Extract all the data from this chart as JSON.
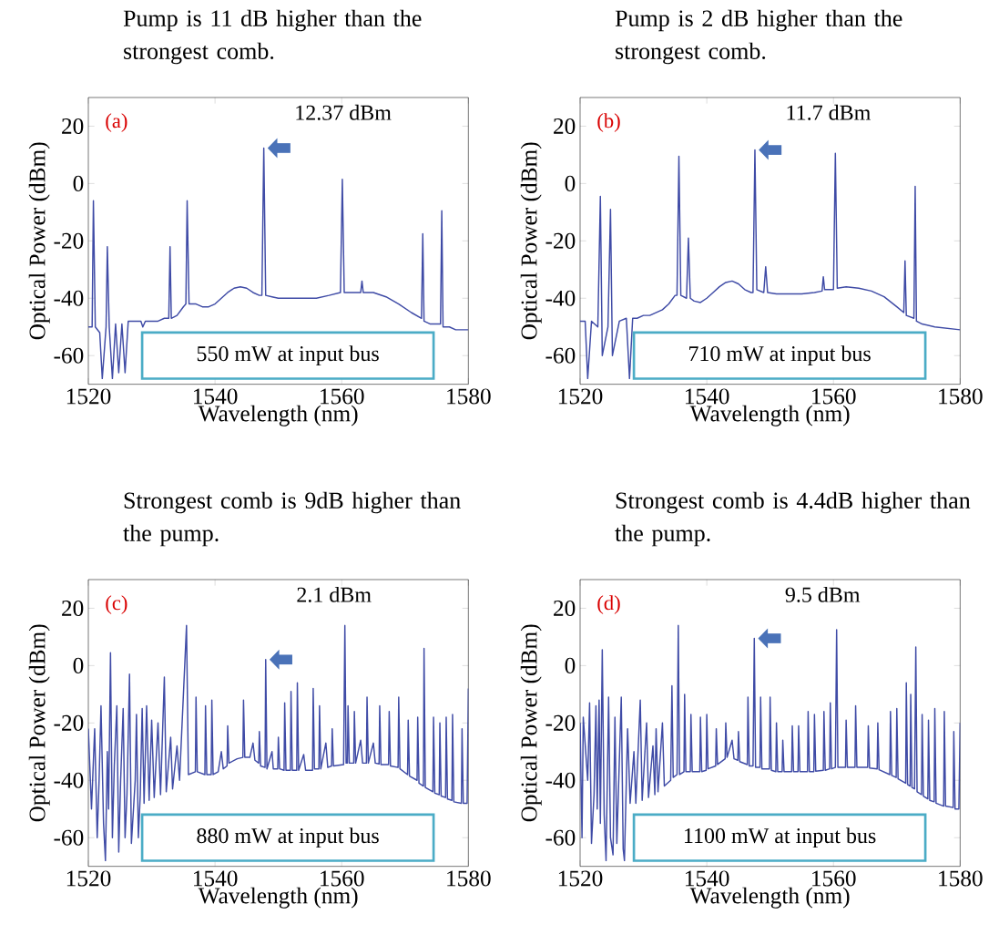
{
  "chart_data": [
    {
      "type": "line",
      "title": "Pump is 11 dB higher than the strongest comb.",
      "xlabel": "Wavelength (nm)",
      "ylabel": "Optical Power (dBm)",
      "xlim": [
        1520,
        1580
      ],
      "ylim": [
        -70,
        30
      ],
      "xticks": [
        1520,
        1540,
        1560,
        1580
      ],
      "yticks": [
        -60,
        -40,
        -20,
        0,
        20
      ],
      "color": "#3f4ba6",
      "annotations": [
        "(a)",
        {
          "text": "12.37 dBm",
          "x": 1547.7,
          "y": 12.37
        },
        "550 mW at input bus"
      ],
      "x": [
        1520,
        1520.3,
        1520.6,
        1520.8,
        1521.1,
        1521.4,
        1521.8,
        1522.2,
        1522.8,
        1523,
        1523.3,
        1523.8,
        1524.3,
        1524.8,
        1525.3,
        1525.8,
        1526.3,
        1526.8,
        1527.3,
        1527.8,
        1528.3,
        1528.6,
        1529,
        1530,
        1531,
        1532,
        1532.7,
        1532.9,
        1533.1,
        1534,
        1535,
        1535.4,
        1535.6,
        1535.9,
        1537,
        1538,
        1539,
        1540,
        1541,
        1542,
        1543,
        1544,
        1545,
        1546,
        1547,
        1547.4,
        1547.7,
        1548,
        1549,
        1550,
        1552,
        1554,
        1556,
        1558,
        1559.8,
        1560.1,
        1560.4,
        1562,
        1563,
        1563.2,
        1563.4,
        1565,
        1567,
        1569,
        1571,
        1572.6,
        1572.8,
        1573,
        1574,
        1575.6,
        1575.8,
        1576,
        1577,
        1578,
        1580
      ],
      "values": [
        -50,
        null,
        -50,
        -6,
        -50,
        null,
        -52,
        -68,
        -50,
        -22,
        -50,
        -68,
        -49,
        -66,
        -49,
        -66,
        -48,
        null,
        -48,
        null,
        -48,
        -50,
        -48,
        -48,
        -48,
        -47,
        -47,
        -22,
        -47,
        -46,
        -43,
        -42,
        -6,
        -42,
        -42,
        -43,
        -43,
        -42,
        -40,
        -38,
        -36.5,
        -36,
        -36.5,
        -38,
        -39,
        -39,
        12.37,
        -39,
        -39.5,
        -40,
        -40,
        -40,
        -40,
        -39,
        -38,
        1.5,
        -38,
        -38,
        -38,
        -34,
        -38,
        -38,
        -39.5,
        -42,
        -45,
        -47,
        -17.5,
        -48,
        -49,
        -49,
        -9.5,
        -50,
        -50,
        -51,
        -51
      ]
    },
    {
      "type": "line",
      "title": "Pump is 2 dB higher than the strongest comb.",
      "xlabel": "Wavelength (nm)",
      "ylabel": "Optical Power (dBm)",
      "xlim": [
        1520,
        1580
      ],
      "ylim": [
        -70,
        30
      ],
      "xticks": [
        1520,
        1540,
        1560,
        1580
      ],
      "yticks": [
        -60,
        -40,
        -20,
        0,
        20
      ],
      "color": "#3f4ba6",
      "annotations": [
        "(b)",
        {
          "text": "11.7 dBm",
          "x": 1547.6,
          "y": 11.7
        },
        "710 mW at input bus"
      ],
      "x": [
        1520,
        1520.3,
        1520.8,
        1521.2,
        1521.8,
        1522.3,
        1522.8,
        1523.2,
        1523.5,
        1523.9,
        1524.4,
        1524.8,
        1525.1,
        1525.6,
        1526.2,
        1526.8,
        1527.3,
        1527.8,
        1528.3,
        1529,
        1530,
        1531,
        1532,
        1533,
        1534,
        1535,
        1535.3,
        1535.6,
        1535.9,
        1536.8,
        1537.1,
        1537.4,
        1538,
        1539,
        1540,
        1541,
        1542,
        1543,
        1544,
        1545,
        1546,
        1547,
        1547.3,
        1547.6,
        1547.9,
        1549,
        1549.3,
        1549.6,
        1551,
        1553,
        1555,
        1557,
        1558.2,
        1558.4,
        1558.6,
        1560,
        1560.3,
        1560.6,
        1562,
        1564,
        1566,
        1568,
        1570,
        1571.1,
        1571.3,
        1571.5,
        1572.7,
        1572.9,
        1573.1,
        1574,
        1576,
        1578,
        1580
      ],
      "values": [
        -48,
        null,
        -48,
        -68,
        -48,
        null,
        -50,
        -4.5,
        -60,
        null,
        -50,
        -9,
        -60,
        null,
        -48,
        null,
        -47,
        -68,
        -47,
        -47,
        -46,
        -46,
        -45,
        -44,
        -42,
        -39,
        -39,
        9.5,
        -39,
        -40,
        -19,
        -40,
        -41,
        -41.5,
        -40,
        -38,
        -36,
        -34.5,
        -34,
        -35,
        -37,
        -38,
        -38,
        11.7,
        -37,
        -38,
        -29,
        -38,
        -38.5,
        -38.5,
        -38.5,
        -38,
        -37.5,
        -32.5,
        -37,
        -37,
        10.5,
        -36.5,
        -36,
        -36.5,
        -37.5,
        -39.5,
        -43,
        -45,
        -27,
        -46,
        -47,
        -1,
        -48,
        -49,
        -50,
        -50.5,
        -51
      ]
    },
    {
      "type": "line",
      "title": "Strongest comb is 9dB higher than the pump.",
      "xlabel": "Wavelength (nm)",
      "ylabel": "Optical Power (dBm)",
      "xlim": [
        1520,
        1580
      ],
      "ylim": [
        -70,
        30
      ],
      "xticks": [
        1520,
        1540,
        1560,
        1580
      ],
      "yticks": [
        -60,
        -40,
        -20,
        0,
        20
      ],
      "color": "#3f4ba6",
      "annotations": [
        "(c)",
        {
          "text": "2.1 dBm",
          "x": 1548,
          "y": 2.1
        },
        "880 mW at input bus"
      ],
      "x": [
        1520,
        1520.5,
        1520.8,
        1521,
        1521.4,
        1521.7,
        1522,
        1522.4,
        1522.7,
        1523,
        1523.2,
        1523.5,
        1523.8,
        1524.1,
        1524.5,
        1524.8,
        1525.1,
        1525.5,
        1525.8,
        1526.1,
        1526.5,
        1526.8,
        1527.1,
        1527.4,
        1527.6,
        1527.9,
        1528.2,
        1528.5,
        1528.8,
        1529.2,
        1529.6,
        1530,
        1530.4,
        1531,
        1531.4,
        1532,
        1532.3,
        1533,
        1533.3,
        1534,
        1534.4,
        1535.5,
        1535.8,
        1536.9,
        1537,
        1537.2,
        1538.4,
        1538.5,
        1538.7,
        1539.4,
        1539.5,
        1539.7,
        1540.5,
        1541,
        1541.3,
        1541.9,
        1542,
        1542.2,
        1543.5,
        1544.4,
        1544.5,
        1544.7,
        1545.5,
        1546,
        1546.3,
        1546.9,
        1547,
        1547.2,
        1547.9,
        1548,
        1548.2,
        1549,
        1549.2,
        1549.9,
        1550,
        1550.2,
        1550.9,
        1551,
        1551.2,
        1551.9,
        1552,
        1552.2,
        1552.9,
        1553,
        1553.2,
        1554,
        1554.3,
        1555.4,
        1555.5,
        1555.7,
        1556.4,
        1556.5,
        1556.7,
        1557.5,
        1557.8,
        1558.4,
        1558.5,
        1558.7,
        1560.3,
        1560.5,
        1560.7,
        1560.9,
        1561,
        1561.2,
        1561.9,
        1562,
        1562.2,
        1563,
        1563.3,
        1563.9,
        1564,
        1564.2,
        1565,
        1565.3,
        1565.9,
        1566,
        1566.2,
        1567.4,
        1567.5,
        1567.7,
        1568.9,
        1569,
        1569.2,
        1570.4,
        1570.5,
        1570.7,
        1571.9,
        1572,
        1572.2,
        1572.9,
        1573,
        1573.2,
        1574.4,
        1574.5,
        1574.7,
        1575.4,
        1575.5,
        1575.7,
        1576.4,
        1576.5,
        1576.7,
        1577.4,
        1577.5,
        1577.7,
        1578.9,
        1579,
        1579.2,
        1579.8,
        1580
      ],
      "values": [
        -22,
        -50,
        null,
        -22,
        -60,
        -40,
        -14,
        -55,
        -68,
        -30,
        -50,
        4.5,
        -60,
        -35,
        -14,
        -65,
        -40,
        -15,
        -60,
        -45,
        -3,
        -62,
        null,
        -40,
        -17,
        -60,
        -45,
        -15,
        -48,
        -14,
        -47,
        -19,
        -46,
        -20,
        -45,
        -4,
        -44,
        -25,
        -43,
        -28,
        -40,
        14,
        -38,
        -37,
        -11,
        -37,
        -38,
        -14,
        -38,
        -38,
        -12,
        -38,
        -37,
        -30,
        -36,
        -35,
        -21,
        -34,
        -32.5,
        -32,
        -12,
        -32,
        -32,
        -27,
        -33,
        -34,
        -23,
        -35,
        -35.5,
        2.1,
        -36,
        -30,
        -36,
        -36,
        -25,
        -36,
        -36.5,
        -13,
        -36.5,
        -36.5,
        -9,
        -36.5,
        -36.5,
        -6,
        -36.5,
        -31,
        -36.5,
        -36.5,
        -8,
        -36,
        -36,
        -14,
        -36,
        -27,
        -35.5,
        -35,
        -22,
        -35,
        -34.5,
        14,
        -34,
        -34,
        -14,
        -34,
        -34,
        -16,
        -34,
        -26,
        -34,
        -34,
        -11,
        -34,
        -27,
        -34,
        -34.3,
        -14,
        -34.5,
        -34.5,
        -16,
        -35,
        -35.5,
        -11,
        -36,
        -38,
        -19,
        -38.5,
        -40,
        -18,
        -41,
        -42,
        6,
        -42.5,
        -44,
        -18,
        -44.5,
        -45,
        -20,
        -45.5,
        -46,
        -18,
        -46.5,
        -47,
        -17,
        -47.5,
        -48,
        -22,
        -48,
        -48,
        -8
      ]
    },
    {
      "type": "line",
      "title": "Strongest comb is 4.4dB higher than the pump.",
      "xlabel": "Wavelength (nm)",
      "ylabel": "Optical Power (dBm)",
      "xlim": [
        1520,
        1580
      ],
      "ylim": [
        -70,
        30
      ],
      "xticks": [
        1520,
        1540,
        1560,
        1580
      ],
      "yticks": [
        -60,
        -40,
        -20,
        0,
        20
      ],
      "color": "#3f4ba6",
      "annotations": [
        "(d)",
        {
          "text": "9.5 dBm",
          "x": 1547.5,
          "y": 9.5
        },
        "1100 mW at input bus"
      ],
      "x": [
        1520,
        1520.3,
        1520.5,
        1520.8,
        1521.2,
        1521.5,
        1521.8,
        1522.2,
        1522.5,
        1522.7,
        1523,
        1523.2,
        1523.5,
        1523.8,
        1524.1,
        1524.5,
        1524.8,
        1525.2,
        1525.5,
        1525.8,
        1526.1,
        1526.5,
        1526.8,
        1527,
        1527.5,
        1527.9,
        1528.5,
        1528.8,
        1529.5,
        1529.8,
        1530.5,
        1530.8,
        1531.5,
        1531.8,
        1532,
        1532.3,
        1533,
        1533.3,
        1534.3,
        1534.5,
        1534.7,
        1535.3,
        1535.5,
        1535.7,
        1536.4,
        1536.5,
        1536.7,
        1537.4,
        1537.5,
        1537.7,
        1538.9,
        1539,
        1539.2,
        1539.9,
        1540,
        1540.2,
        1541.4,
        1541.5,
        1541.7,
        1542.9,
        1543,
        1543.2,
        1544,
        1544.3,
        1544.9,
        1545,
        1545.2,
        1546.4,
        1546.5,
        1546.7,
        1547.3,
        1547.5,
        1547.7,
        1548.4,
        1548.5,
        1548.7,
        1549.9,
        1550,
        1550.2,
        1550.9,
        1551,
        1551.2,
        1551.9,
        1552,
        1552.2,
        1553.4,
        1553.5,
        1553.7,
        1554.4,
        1554.5,
        1554.7,
        1555.9,
        1556,
        1556.2,
        1556.9,
        1557,
        1557.2,
        1558.4,
        1558.5,
        1558.7,
        1559.4,
        1559.5,
        1559.7,
        1560.3,
        1560.5,
        1560.7,
        1561.9,
        1562,
        1562.2,
        1563.4,
        1563.5,
        1563.7,
        1565.4,
        1565.5,
        1565.7,
        1566.9,
        1567,
        1567.2,
        1568.9,
        1569,
        1569.2,
        1569.9,
        1570,
        1570.2,
        1571.4,
        1571.5,
        1571.7,
        1572.1,
        1572.2,
        1572.4,
        1572.8,
        1573,
        1573.2,
        1573.9,
        1574,
        1574.2,
        1574.9,
        1575,
        1575.2,
        1575.9,
        1576,
        1576.2,
        1577.4,
        1577.5,
        1577.7,
        1578.9,
        1579,
        1579.2,
        1579.8,
        1580
      ],
      "values": [
        -20,
        -60,
        -18,
        null,
        -40,
        -13,
        -62,
        -45,
        -14,
        -50,
        -12,
        -55,
        5.5,
        -52,
        -68,
        -11,
        -60,
        -66,
        -18,
        -62,
        null,
        -11,
        -64,
        -68,
        -22,
        -48,
        -30,
        -48,
        -12,
        -47,
        -20,
        -46,
        -28,
        -45,
        -22,
        -44,
        -20,
        -42,
        -40,
        -7,
        -39,
        -38,
        14,
        -38,
        -37,
        -10,
        -37,
        -37,
        -17,
        -37,
        -37,
        -18,
        -37,
        -36.5,
        -17,
        -36,
        -35,
        -22,
        -34.5,
        -32.5,
        -20,
        -32,
        -26,
        -32.5,
        -33,
        -23,
        -33.5,
        -34.5,
        -11,
        -35,
        -35,
        9.5,
        -35.5,
        -35.5,
        -11,
        -36,
        -36,
        -11,
        -36.5,
        -37,
        -20,
        -37,
        -37,
        -26,
        -37,
        -37,
        -21,
        -37,
        -37,
        -21,
        -37,
        -37,
        -16,
        -37,
        -37,
        -17,
        -36.8,
        -36.5,
        -16,
        -36.5,
        -36,
        -13,
        -36,
        -35.5,
        12.5,
        -35.5,
        -35.5,
        -19,
        -35.5,
        -35.5,
        -14,
        -35.5,
        -35.5,
        -21,
        -35.7,
        -36,
        -20,
        -36.3,
        -38,
        -16,
        -38.3,
        -39,
        -15,
        -39.5,
        -41,
        -6,
        -41.5,
        -42,
        -10,
        -42.5,
        -43,
        6.5,
        -44,
        -45,
        -17,
        -45.5,
        -46.5,
        -19,
        -47,
        -47.5,
        -15,
        -48,
        -49,
        -16,
        -49,
        -49.5,
        -23,
        -50,
        -50,
        -20
      ]
    }
  ]
}
